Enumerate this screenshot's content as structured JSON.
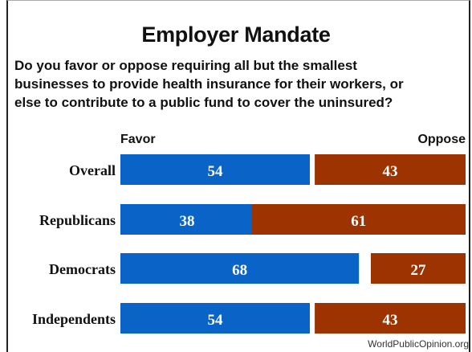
{
  "colors": {
    "favor": "#0a64c8",
    "oppose": "#9c3300",
    "border": "#222222"
  },
  "header": {
    "title": "Employer Mandate",
    "question_lines": [
      "Do you favor or oppose requiring all but the smallest",
      "businesses to provide health insurance for their workers, or",
      "else to contribute to a public fund to cover the uninsured?"
    ]
  },
  "chart_data": {
    "type": "bar",
    "orientation": "horizontal",
    "stacked": false,
    "categories": [
      "Overall",
      "Republicans",
      "Democrats",
      "Independents"
    ],
    "series": [
      {
        "name": "Favor",
        "values": [
          54,
          38,
          68,
          54
        ]
      },
      {
        "name": "Oppose",
        "values": [
          43,
          61,
          27,
          43
        ]
      }
    ],
    "xlim": [
      0,
      100
    ],
    "grid": false,
    "legend": "column headers at top"
  },
  "footer": {
    "source": "WorldPublicOpinion.org"
  }
}
